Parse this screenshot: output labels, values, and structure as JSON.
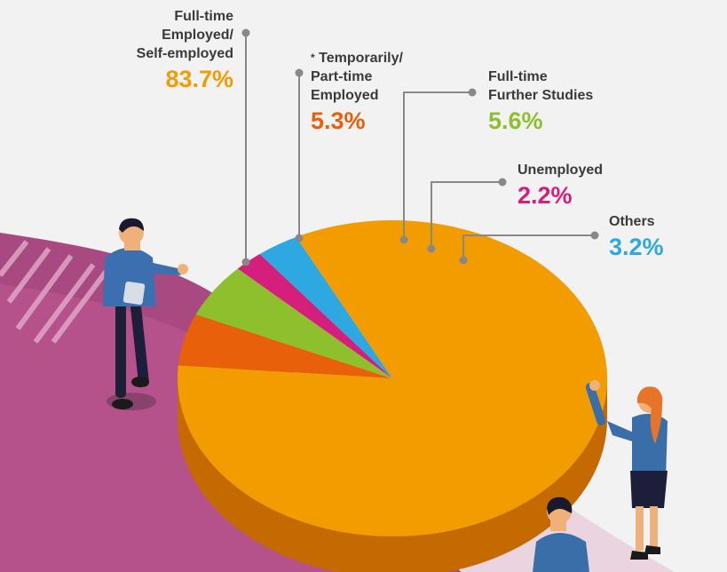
{
  "chart_data": {
    "type": "pie",
    "title": "",
    "slices": [
      {
        "label": "Full-time\nEmployed/\nSelf-employed",
        "value": 83.7,
        "value_text": "83.7%",
        "color": "#f39c00",
        "label_color": "#f39c00"
      },
      {
        "label": "Temporarily/\nPart-time\nEmployed",
        "marker": "*",
        "value": 5.3,
        "value_text": "5.3%",
        "color": "#e8600a",
        "label_color": "#e8600a"
      },
      {
        "label": "Full-time\nFurther Studies",
        "value": 5.6,
        "value_text": "5.6%",
        "color": "#8dc02c",
        "label_color": "#8dc02c"
      },
      {
        "label": "Unemployed",
        "value": 2.2,
        "value_text": "2.2%",
        "color": "#d4207c",
        "label_color": "#d4207c"
      },
      {
        "label": "Others",
        "value": 3.2,
        "value_text": "3.2%",
        "color": "#2ea8e0",
        "label_color": "#2ea8e0"
      }
    ],
    "side_color": "#c46a00",
    "leader_line_color": "#888888",
    "background_accent": "#a23b78"
  }
}
